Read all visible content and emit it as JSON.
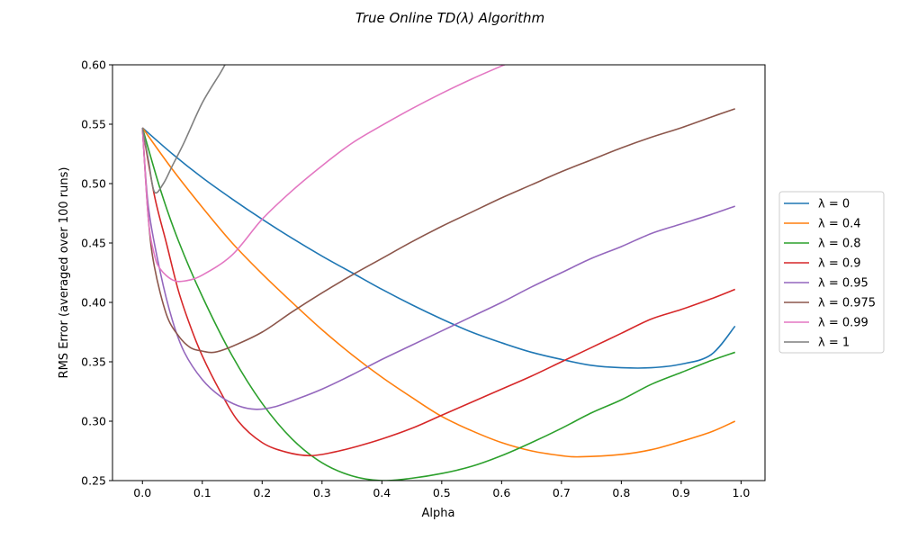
{
  "chart_data": {
    "type": "line",
    "title": "True Online TD(λ) Algorithm",
    "xlabel": "Alpha",
    "ylabel": "RMS Error (averaged over 100 runs)",
    "xlim": [
      -0.05,
      1.04
    ],
    "ylim": [
      0.25,
      0.6
    ],
    "xticks": [
      "0.0",
      "0.1",
      "0.2",
      "0.3",
      "0.4",
      "0.5",
      "0.6",
      "0.7",
      "0.8",
      "0.9",
      "1.0"
    ],
    "yticks": [
      "0.25",
      "0.30",
      "0.35",
      "0.40",
      "0.45",
      "0.50",
      "0.55",
      "0.60"
    ],
    "grid": false,
    "legend_placement": "right, outside plot",
    "series": [
      {
        "name": "λ = 0",
        "color": "#1f77b4",
        "points": [
          [
            0,
            0.547
          ],
          [
            0.05,
            0.525
          ],
          [
            0.1,
            0.505
          ],
          [
            0.15,
            0.487
          ],
          [
            0.2,
            0.47
          ],
          [
            0.25,
            0.454
          ],
          [
            0.3,
            0.439
          ],
          [
            0.35,
            0.425
          ],
          [
            0.4,
            0.411
          ],
          [
            0.45,
            0.398
          ],
          [
            0.5,
            0.386
          ],
          [
            0.55,
            0.375
          ],
          [
            0.6,
            0.366
          ],
          [
            0.65,
            0.358
          ],
          [
            0.7,
            0.352
          ],
          [
            0.75,
            0.347
          ],
          [
            0.8,
            0.345
          ],
          [
            0.85,
            0.345
          ],
          [
            0.9,
            0.348
          ],
          [
            0.95,
            0.356
          ],
          [
            0.99,
            0.38
          ]
        ]
      },
      {
        "name": "λ = 0.4",
        "color": "#ff7f0e",
        "points": [
          [
            0,
            0.547
          ],
          [
            0.05,
            0.512
          ],
          [
            0.1,
            0.48
          ],
          [
            0.15,
            0.45
          ],
          [
            0.2,
            0.424
          ],
          [
            0.25,
            0.4
          ],
          [
            0.3,
            0.377
          ],
          [
            0.35,
            0.356
          ],
          [
            0.4,
            0.337
          ],
          [
            0.45,
            0.32
          ],
          [
            0.5,
            0.304
          ],
          [
            0.55,
            0.292
          ],
          [
            0.6,
            0.282
          ],
          [
            0.65,
            0.275
          ],
          [
            0.7,
            0.271
          ],
          [
            0.73,
            0.27
          ],
          [
            0.8,
            0.272
          ],
          [
            0.85,
            0.276
          ],
          [
            0.9,
            0.283
          ],
          [
            0.95,
            0.291
          ],
          [
            0.99,
            0.3
          ]
        ]
      },
      {
        "name": "λ = 0.8",
        "color": "#2ca02c",
        "points": [
          [
            0,
            0.547
          ],
          [
            0.03,
            0.495
          ],
          [
            0.06,
            0.452
          ],
          [
            0.1,
            0.405
          ],
          [
            0.15,
            0.355
          ],
          [
            0.2,
            0.315
          ],
          [
            0.25,
            0.285
          ],
          [
            0.3,
            0.265
          ],
          [
            0.35,
            0.254
          ],
          [
            0.4,
            0.25
          ],
          [
            0.45,
            0.252
          ],
          [
            0.5,
            0.256
          ],
          [
            0.55,
            0.262
          ],
          [
            0.6,
            0.271
          ],
          [
            0.65,
            0.282
          ],
          [
            0.7,
            0.294
          ],
          [
            0.75,
            0.307
          ],
          [
            0.8,
            0.318
          ],
          [
            0.85,
            0.331
          ],
          [
            0.9,
            0.341
          ],
          [
            0.95,
            0.351
          ],
          [
            0.99,
            0.358
          ]
        ]
      },
      {
        "name": "λ = 0.9",
        "color": "#d62728",
        "points": [
          [
            0,
            0.547
          ],
          [
            0.02,
            0.49
          ],
          [
            0.04,
            0.45
          ],
          [
            0.06,
            0.41
          ],
          [
            0.08,
            0.38
          ],
          [
            0.1,
            0.355
          ],
          [
            0.13,
            0.325
          ],
          [
            0.16,
            0.3
          ],
          [
            0.2,
            0.282
          ],
          [
            0.24,
            0.274
          ],
          [
            0.28,
            0.271
          ],
          [
            0.32,
            0.274
          ],
          [
            0.36,
            0.279
          ],
          [
            0.4,
            0.285
          ],
          [
            0.45,
            0.294
          ],
          [
            0.5,
            0.305
          ],
          [
            0.55,
            0.316
          ],
          [
            0.6,
            0.327
          ],
          [
            0.65,
            0.338
          ],
          [
            0.7,
            0.35
          ],
          [
            0.75,
            0.362
          ],
          [
            0.8,
            0.374
          ],
          [
            0.85,
            0.386
          ],
          [
            0.9,
            0.394
          ],
          [
            0.95,
            0.403
          ],
          [
            0.99,
            0.411
          ]
        ]
      },
      {
        "name": "λ = 0.95",
        "color": "#9467bd",
        "points": [
          [
            0,
            0.547
          ],
          [
            0.01,
            0.48
          ],
          [
            0.03,
            0.425
          ],
          [
            0.05,
            0.385
          ],
          [
            0.07,
            0.358
          ],
          [
            0.1,
            0.335
          ],
          [
            0.13,
            0.321
          ],
          [
            0.16,
            0.313
          ],
          [
            0.19,
            0.31
          ],
          [
            0.22,
            0.312
          ],
          [
            0.26,
            0.319
          ],
          [
            0.3,
            0.327
          ],
          [
            0.35,
            0.339
          ],
          [
            0.4,
            0.352
          ],
          [
            0.45,
            0.364
          ],
          [
            0.5,
            0.376
          ],
          [
            0.55,
            0.388
          ],
          [
            0.6,
            0.4
          ],
          [
            0.65,
            0.413
          ],
          [
            0.7,
            0.425
          ],
          [
            0.75,
            0.437
          ],
          [
            0.8,
            0.447
          ],
          [
            0.85,
            0.458
          ],
          [
            0.9,
            0.466
          ],
          [
            0.95,
            0.474
          ],
          [
            0.99,
            0.481
          ]
        ]
      },
      {
        "name": "λ = 0.975",
        "color": "#8c564b",
        "points": [
          [
            0,
            0.547
          ],
          [
            0.01,
            0.47
          ],
          [
            0.02,
            0.43
          ],
          [
            0.04,
            0.39
          ],
          [
            0.06,
            0.372
          ],
          [
            0.08,
            0.362
          ],
          [
            0.1,
            0.359
          ],
          [
            0.12,
            0.358
          ],
          [
            0.15,
            0.363
          ],
          [
            0.2,
            0.375
          ],
          [
            0.25,
            0.392
          ],
          [
            0.3,
            0.408
          ],
          [
            0.35,
            0.423
          ],
          [
            0.4,
            0.437
          ],
          [
            0.45,
            0.451
          ],
          [
            0.5,
            0.464
          ],
          [
            0.55,
            0.476
          ],
          [
            0.6,
            0.488
          ],
          [
            0.65,
            0.499
          ],
          [
            0.7,
            0.51
          ],
          [
            0.75,
            0.52
          ],
          [
            0.8,
            0.53
          ],
          [
            0.85,
            0.539
          ],
          [
            0.9,
            0.547
          ],
          [
            0.95,
            0.556
          ],
          [
            0.99,
            0.563
          ]
        ]
      },
      {
        "name": "λ = 0.99",
        "color": "#e377c2",
        "points": [
          [
            0,
            0.547
          ],
          [
            0.01,
            0.47
          ],
          [
            0.02,
            0.44
          ],
          [
            0.03,
            0.428
          ],
          [
            0.05,
            0.419
          ],
          [
            0.07,
            0.418
          ],
          [
            0.1,
            0.423
          ],
          [
            0.15,
            0.44
          ],
          [
            0.2,
            0.47
          ],
          [
            0.25,
            0.494
          ],
          [
            0.3,
            0.515
          ],
          [
            0.35,
            0.534
          ],
          [
            0.4,
            0.549
          ],
          [
            0.45,
            0.563
          ],
          [
            0.5,
            0.576
          ],
          [
            0.55,
            0.588
          ],
          [
            0.6,
            0.599
          ],
          [
            0.62,
            0.603
          ]
        ]
      },
      {
        "name": "λ = 1",
        "color": "#7f7f7f",
        "points": [
          [
            0,
            0.547
          ],
          [
            0.01,
            0.52
          ],
          [
            0.02,
            0.493
          ],
          [
            0.035,
            0.5
          ],
          [
            0.05,
            0.515
          ],
          [
            0.07,
            0.535
          ],
          [
            0.1,
            0.568
          ],
          [
            0.13,
            0.593
          ],
          [
            0.14,
            0.602
          ]
        ]
      }
    ]
  }
}
